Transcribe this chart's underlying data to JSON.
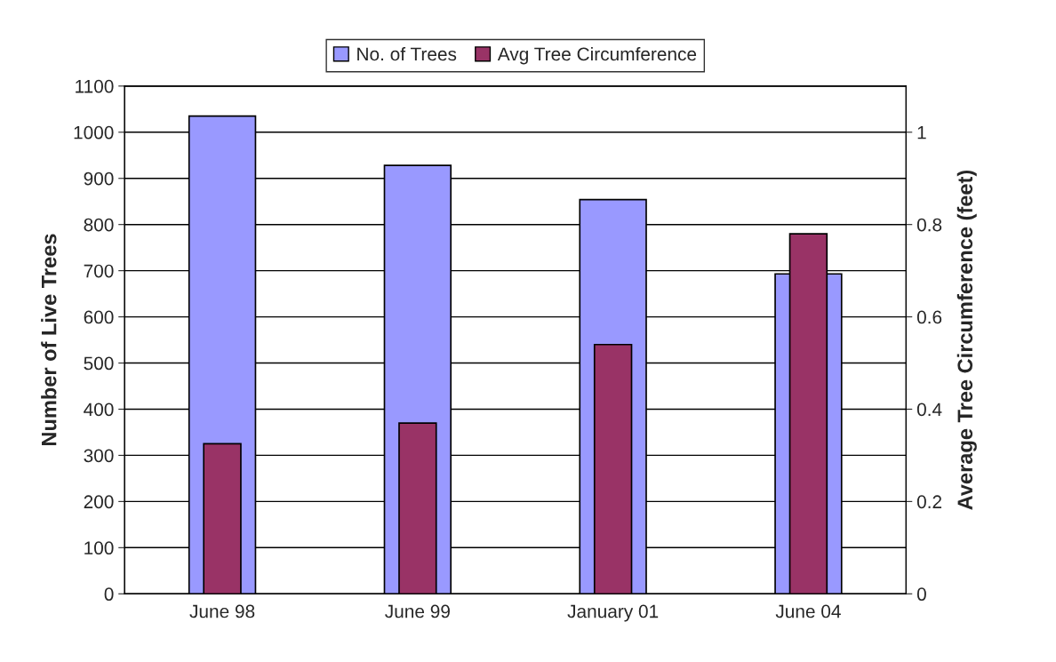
{
  "chart_data": {
    "type": "bar",
    "categories": [
      "June 98",
      "June 99",
      "January 01",
      "June 04"
    ],
    "ylabel": "Number of Live Trees",
    "y2label": "Average Tree Circumference (feet)",
    "series": [
      {
        "name": "No. of Trees",
        "color": "#9999ff",
        "values": [
          1035,
          928,
          854,
          693
        ]
      },
      {
        "name": "Avg Tree Circumference",
        "color": "#993366",
        "axis": "y2",
        "values": [
          0.325,
          0.37,
          0.54,
          0.78
        ]
      }
    ],
    "ylim": [
      0,
      1100
    ],
    "yticks": [
      0,
      100,
      200,
      300,
      400,
      500,
      600,
      700,
      800,
      900,
      1000,
      1100
    ],
    "y2lim": [
      0,
      1.1
    ],
    "y2ticks": [
      0,
      0.2,
      0.4,
      0.6,
      0.8,
      1
    ],
    "grid": "y",
    "legend": "top"
  }
}
